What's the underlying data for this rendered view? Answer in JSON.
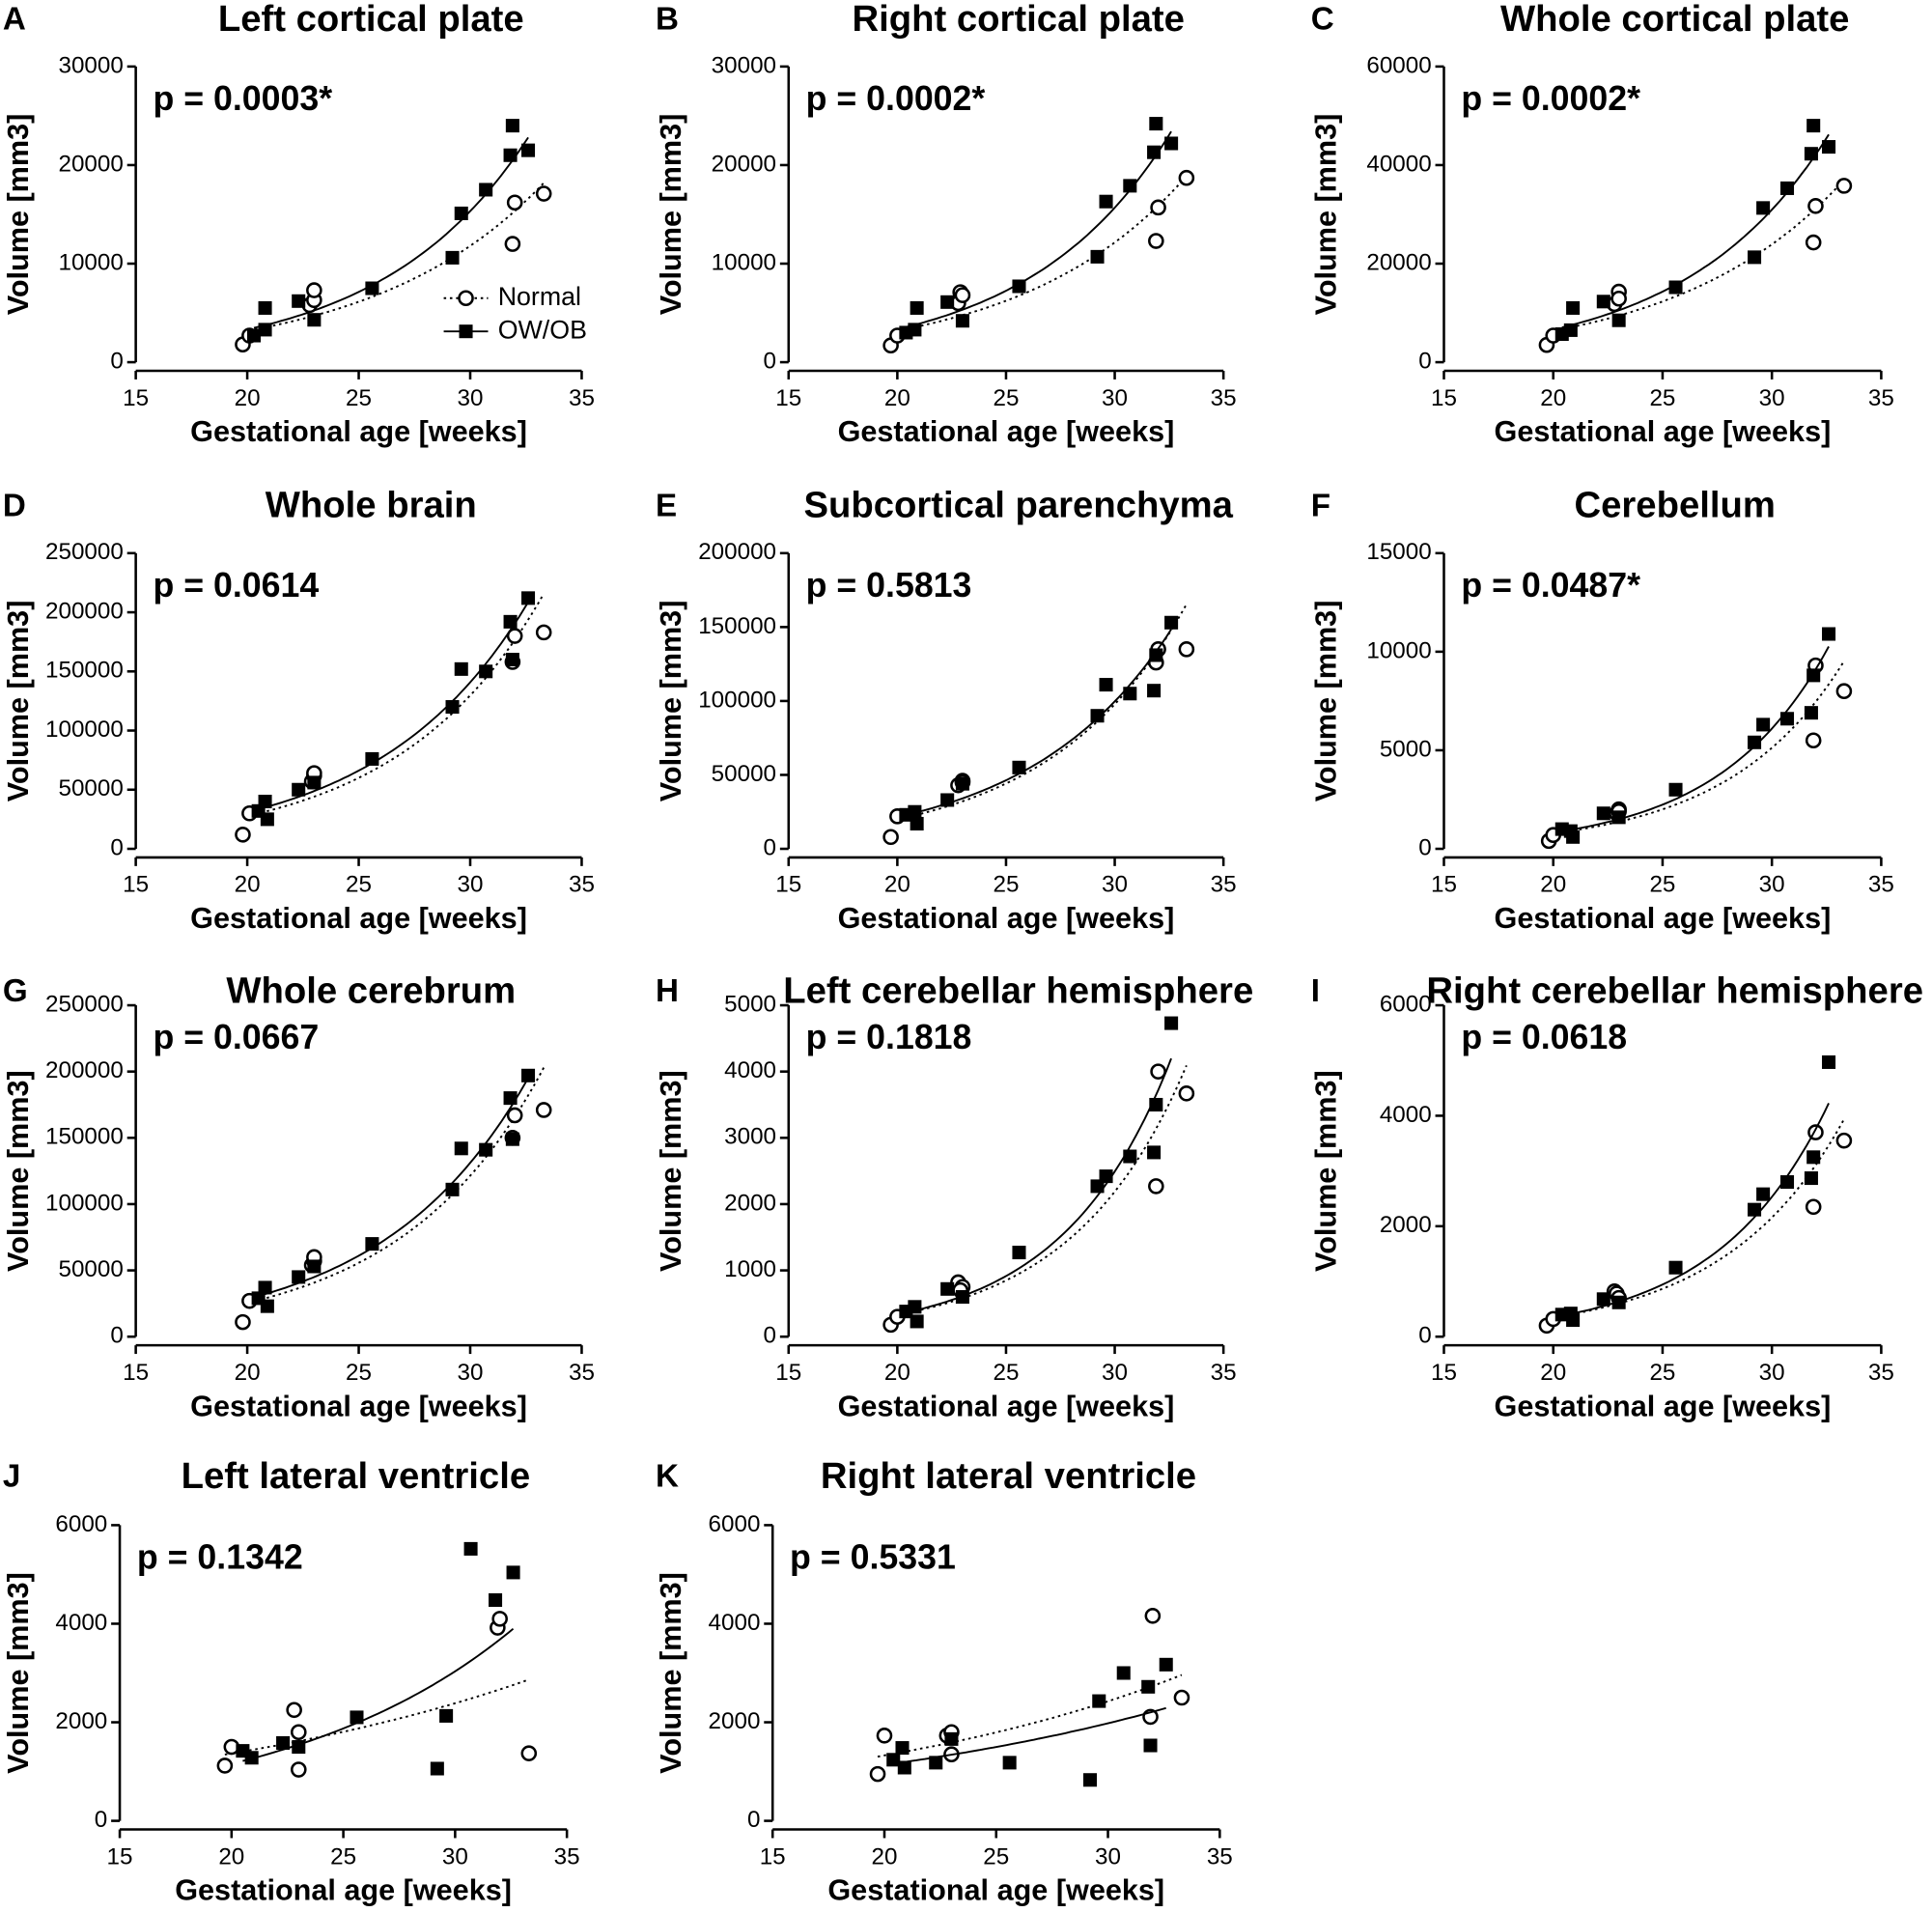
{
  "chart_data": [
    {
      "type": "scatter",
      "panel": "A",
      "title": "Left cortical plate",
      "annotation": "p = 0.0003*",
      "xlabel": "Gestational age [weeks]",
      "ylabel": "Volume [mm3]",
      "xlim": [
        15,
        35
      ],
      "xticks": [
        15,
        20,
        25,
        30,
        35
      ],
      "ylim": [
        0,
        30000
      ],
      "yticks": [
        0,
        10000,
        20000,
        30000
      ],
      "legend": "lower right",
      "series": [
        {
          "name": "Normal",
          "color": "#000000",
          "marker": "circle",
          "line_style": "dotted",
          "x": [
            19.8,
            20.1,
            22.8,
            23.0,
            23.0,
            31.9,
            32.0,
            33.3
          ],
          "values": [
            1800,
            2700,
            5800,
            6300,
            7300,
            12000,
            16200,
            17100
          ]
        },
        {
          "name": "OW/OB",
          "color": "#000000",
          "marker": "square",
          "line_style": "solid",
          "x": [
            20.3,
            20.8,
            20.8,
            22.3,
            23.0,
            25.6,
            29.2,
            29.6,
            30.7,
            31.8,
            31.9,
            32.6
          ],
          "values": [
            2700,
            3300,
            5500,
            6200,
            4300,
            7500,
            10600,
            15100,
            17500,
            21000,
            24000,
            21500
          ]
        }
      ]
    },
    {
      "type": "scatter",
      "panel": "B",
      "title": "Right cortical plate",
      "annotation": "p = 0.0002*",
      "xlabel": "Gestational age [weeks]",
      "ylabel": "Volume [mm3]",
      "xlim": [
        15,
        35
      ],
      "xticks": [
        15,
        20,
        25,
        30,
        35
      ],
      "ylim": [
        0,
        30000
      ],
      "yticks": [
        0,
        10000,
        20000,
        30000
      ],
      "series": [
        {
          "color": "#000000",
          "marker": "circle",
          "line_style": "dotted",
          "x": [
            19.7,
            20.0,
            22.8,
            22.9,
            23.0,
            31.9,
            32.0,
            33.3
          ],
          "values": [
            1700,
            2700,
            6000,
            7100,
            6800,
            12300,
            15700,
            18700
          ]
        },
        {
          "color": "#000000",
          "marker": "square",
          "line_style": "solid",
          "x": [
            20.4,
            20.8,
            20.9,
            22.3,
            23.0,
            25.6,
            29.2,
            29.6,
            30.7,
            31.8,
            31.9,
            32.6
          ],
          "values": [
            3000,
            3300,
            5500,
            6100,
            4200,
            7700,
            10700,
            16300,
            17900,
            21300,
            24200,
            22200
          ]
        }
      ]
    },
    {
      "type": "scatter",
      "panel": "C",
      "title": "Whole cortical plate",
      "annotation": "p = 0.0002*",
      "xlabel": "Gestational age [weeks]",
      "ylabel": "Volume [mm3]",
      "xlim": [
        15,
        35
      ],
      "xticks": [
        15,
        20,
        25,
        30,
        35
      ],
      "ylim": [
        0,
        60000
      ],
      "yticks": [
        0,
        20000,
        40000,
        60000
      ],
      "series": [
        {
          "color": "#000000",
          "marker": "circle",
          "line_style": "dotted",
          "x": [
            19.7,
            20.0,
            22.8,
            23.0,
            23.0,
            31.9,
            32.0,
            33.3
          ],
          "values": [
            3500,
            5400,
            11800,
            14300,
            12900,
            24300,
            31700,
            35800
          ]
        },
        {
          "color": "#000000",
          "marker": "square",
          "line_style": "solid",
          "x": [
            20.4,
            20.8,
            20.9,
            22.3,
            23.0,
            25.6,
            29.2,
            29.6,
            30.7,
            31.8,
            31.9,
            32.6
          ],
          "values": [
            5700,
            6500,
            11000,
            12300,
            8500,
            15200,
            21300,
            31300,
            35300,
            42300,
            48000,
            43700
          ]
        }
      ]
    },
    {
      "type": "scatter",
      "panel": "D",
      "title": "Whole brain",
      "annotation": "p = 0.0614",
      "xlabel": "Gestational age [weeks]",
      "ylabel": "Volume [mm3]",
      "xlim": [
        15,
        35
      ],
      "xticks": [
        15,
        20,
        25,
        30,
        35
      ],
      "ylim": [
        0,
        250000
      ],
      "yticks": [
        0,
        50000,
        100000,
        150000,
        200000,
        250000
      ],
      "series": [
        {
          "color": "#000000",
          "marker": "circle",
          "line_style": "dotted",
          "x": [
            19.8,
            20.1,
            22.9,
            23.0,
            23.0,
            31.9,
            32.0,
            33.3
          ],
          "values": [
            12000,
            30000,
            57000,
            62000,
            64000,
            158000,
            180000,
            183000
          ]
        },
        {
          "color": "#000000",
          "marker": "square",
          "line_style": "solid",
          "x": [
            20.5,
            20.8,
            20.9,
            22.3,
            23.0,
            25.6,
            29.2,
            29.6,
            30.7,
            31.8,
            31.9,
            32.6
          ],
          "values": [
            32000,
            40000,
            25000,
            50000,
            56000,
            76000,
            120000,
            152000,
            150000,
            192000,
            160000,
            212000
          ]
        }
      ]
    },
    {
      "type": "scatter",
      "panel": "E",
      "title": "Subcortical parenchyma",
      "annotation": "p = 0.5813",
      "xlabel": "Gestational age [weeks]",
      "ylabel": "Volume [mm3]",
      "xlim": [
        15,
        35
      ],
      "xticks": [
        15,
        20,
        25,
        30,
        35
      ],
      "ylim": [
        0,
        200000
      ],
      "yticks": [
        0,
        50000,
        100000,
        150000,
        200000
      ],
      "series": [
        {
          "color": "#000000",
          "marker": "circle",
          "line_style": "dotted",
          "x": [
            19.7,
            20.0,
            22.8,
            23.0,
            23.0,
            31.9,
            32.0,
            33.3
          ],
          "values": [
            8000,
            22000,
            43000,
            46000,
            45000,
            126000,
            135000,
            135000
          ]
        },
        {
          "color": "#000000",
          "marker": "square",
          "line_style": "solid",
          "x": [
            20.4,
            20.8,
            20.9,
            22.3,
            23.0,
            25.6,
            29.2,
            29.6,
            30.7,
            31.8,
            31.9,
            32.6
          ],
          "values": [
            23000,
            25000,
            17000,
            33000,
            44000,
            55000,
            90000,
            111000,
            105000,
            107000,
            131000,
            153000
          ]
        }
      ]
    },
    {
      "type": "scatter",
      "panel": "F",
      "title": "Cerebellum",
      "annotation": "p = 0.0487*",
      "xlabel": "Gestational age [weeks]",
      "ylabel": "Volume [mm3]",
      "xlim": [
        15,
        35
      ],
      "xticks": [
        15,
        20,
        25,
        30,
        35
      ],
      "ylim": [
        0,
        15000
      ],
      "yticks": [
        0,
        5000,
        10000,
        15000
      ],
      "series": [
        {
          "color": "#000000",
          "marker": "circle",
          "line_style": "dotted",
          "x": [
            19.8,
            20.0,
            22.9,
            23.0,
            23.0,
            31.9,
            32.0,
            33.3
          ],
          "values": [
            400,
            700,
            1800,
            2000,
            1900,
            5500,
            9300,
            8000
          ]
        },
        {
          "color": "#000000",
          "marker": "square",
          "line_style": "solid",
          "x": [
            20.4,
            20.8,
            20.9,
            22.3,
            23.0,
            25.6,
            29.2,
            29.6,
            30.7,
            31.8,
            31.9,
            32.6
          ],
          "values": [
            1000,
            900,
            600,
            1800,
            1600,
            3000,
            5400,
            6300,
            6600,
            6900,
            8800,
            10900
          ]
        }
      ]
    },
    {
      "type": "scatter",
      "panel": "G",
      "title": "Whole cerebrum",
      "annotation": "p = 0.0667",
      "xlabel": "Gestational age [weeks]",
      "ylabel": "Volume [mm3]",
      "xlim": [
        15,
        35
      ],
      "xticks": [
        15,
        20,
        25,
        30,
        35
      ],
      "ylim": [
        0,
        250000
      ],
      "yticks": [
        0,
        50000,
        100000,
        150000,
        200000,
        250000
      ],
      "series": [
        {
          "color": "#000000",
          "marker": "circle",
          "line_style": "dotted",
          "x": [
            19.8,
            20.1,
            22.9,
            23.0,
            23.0,
            31.9,
            32.0,
            33.3
          ],
          "values": [
            11000,
            27000,
            54000,
            57000,
            60000,
            150000,
            167000,
            171000
          ]
        },
        {
          "color": "#000000",
          "marker": "square",
          "line_style": "solid",
          "x": [
            20.5,
            20.8,
            20.9,
            22.3,
            23.0,
            25.6,
            29.2,
            29.6,
            30.7,
            31.8,
            31.9,
            32.6
          ],
          "values": [
            29000,
            37000,
            23000,
            45000,
            53000,
            70000,
            111000,
            142000,
            141000,
            180000,
            149000,
            197000
          ]
        }
      ]
    },
    {
      "type": "scatter",
      "panel": "H",
      "title": "Left cerebellar hemisphere",
      "annotation": "p = 0.1818",
      "xlabel": "Gestational age [weeks]",
      "ylabel": "Volume [mm3]",
      "xlim": [
        15,
        35
      ],
      "xticks": [
        15,
        20,
        25,
        30,
        35
      ],
      "ylim": [
        0,
        5000
      ],
      "yticks": [
        0,
        1000,
        2000,
        3000,
        4000,
        5000
      ],
      "series": [
        {
          "color": "#000000",
          "marker": "circle",
          "line_style": "dotted",
          "x": [
            19.7,
            20.0,
            22.8,
            23.0,
            22.9,
            31.9,
            32.0,
            33.3
          ],
          "values": [
            180,
            300,
            820,
            750,
            700,
            2270,
            4000,
            3670
          ]
        },
        {
          "color": "#000000",
          "marker": "square",
          "line_style": "solid",
          "x": [
            20.4,
            20.8,
            20.9,
            22.3,
            23.0,
            25.6,
            29.2,
            29.6,
            30.7,
            31.8,
            31.9,
            32.6
          ],
          "values": [
            380,
            450,
            230,
            720,
            600,
            1270,
            2270,
            2420,
            2720,
            2780,
            3500,
            4730
          ]
        }
      ]
    },
    {
      "type": "scatter",
      "panel": "I",
      "title": "Right cerebellar hemisphere",
      "annotation": "p = 0.0618",
      "xlabel": "Gestational age [weeks]",
      "ylabel": "Volume [mm3]",
      "xlim": [
        15,
        35
      ],
      "xticks": [
        15,
        20,
        25,
        30,
        35
      ],
      "ylim": [
        0,
        6000
      ],
      "yticks": [
        0,
        2000,
        4000,
        6000
      ],
      "series": [
        {
          "color": "#000000",
          "marker": "circle",
          "line_style": "dotted",
          "x": [
            19.7,
            20.0,
            22.8,
            22.9,
            23.0,
            31.9,
            32.0,
            33.3
          ],
          "values": [
            200,
            320,
            820,
            780,
            700,
            2350,
            3700,
            3550
          ]
        },
        {
          "color": "#000000",
          "marker": "square",
          "line_style": "solid",
          "x": [
            20.4,
            20.8,
            20.9,
            22.3,
            23.0,
            25.6,
            29.2,
            29.6,
            30.7,
            31.8,
            31.9,
            32.6
          ],
          "values": [
            400,
            420,
            300,
            680,
            620,
            1250,
            2300,
            2580,
            2800,
            2870,
            3250,
            4970
          ]
        }
      ]
    },
    {
      "type": "scatter",
      "panel": "J",
      "title": "Left lateral ventricle",
      "annotation": "p = 0.1342",
      "xlabel": "Gestational age [weeks]",
      "ylabel": "Volume [mm3]",
      "xlim": [
        15,
        35
      ],
      "xticks": [
        15,
        20,
        25,
        30,
        35
      ],
      "ylim": [
        0,
        6000
      ],
      "yticks": [
        0,
        2000,
        4000,
        6000
      ],
      "series": [
        {
          "color": "#000000",
          "marker": "circle",
          "line_style": "dotted",
          "x": [
            19.7,
            20.0,
            22.8,
            23.0,
            23.0,
            31.9,
            32.0,
            33.3
          ],
          "values": [
            1120,
            1500,
            2250,
            1800,
            1040,
            3920,
            4100,
            1370
          ]
        },
        {
          "color": "#000000",
          "marker": "square",
          "line_style": "solid",
          "x": [
            20.5,
            20.9,
            22.3,
            23.0,
            25.6,
            29.2,
            29.6,
            30.7,
            31.8,
            32.6
          ],
          "values": [
            1420,
            1280,
            1580,
            1500,
            2100,
            1060,
            2130,
            5520,
            4480,
            5040
          ]
        }
      ]
    },
    {
      "type": "scatter",
      "panel": "K",
      "title": "Right lateral ventricle",
      "annotation": "p = 0.5331",
      "xlabel": "Gestational age [weeks]",
      "ylabel": "Volume [mm3]",
      "xlim": [
        15,
        35
      ],
      "xticks": [
        15,
        20,
        25,
        30,
        35
      ],
      "ylim": [
        0,
        6000
      ],
      "yticks": [
        0,
        2000,
        4000,
        6000
      ],
      "series": [
        {
          "color": "#000000",
          "marker": "circle",
          "line_style": "dotted",
          "x": [
            19.7,
            20.0,
            22.8,
            23.0,
            23.0,
            31.9,
            32.0,
            33.3
          ],
          "values": [
            950,
            1730,
            1730,
            1800,
            1350,
            2110,
            4160,
            2500
          ]
        },
        {
          "color": "#000000",
          "marker": "square",
          "line_style": "solid",
          "x": [
            20.4,
            20.8,
            20.9,
            22.3,
            23.0,
            25.6,
            29.2,
            29.6,
            30.7,
            31.8,
            31.9,
            32.6
          ],
          "values": [
            1240,
            1480,
            1080,
            1180,
            1660,
            1180,
            830,
            2430,
            3000,
            2720,
            1530,
            3170
          ]
        }
      ]
    }
  ]
}
